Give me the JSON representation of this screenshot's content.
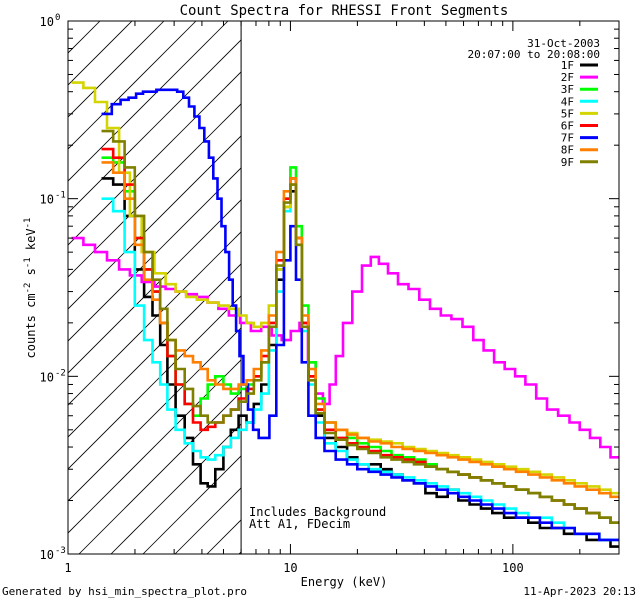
{
  "chart_data": {
    "type": "line",
    "title": "Count Spectra for RHESSI Front Segments",
    "xlabel": "Energy (keV)",
    "ylabel_parts": [
      "counts cm",
      "-2",
      " s",
      "-1",
      " keV",
      "-1"
    ],
    "xscale": "log",
    "yscale": "log",
    "xlim": [
      1,
      300
    ],
    "ylim": [
      0.001,
      1
    ],
    "x_ticks": [
      {
        "value": 1,
        "label": "1"
      },
      {
        "value": 10,
        "label": "10"
      },
      {
        "value": 100,
        "label": "100"
      }
    ],
    "y_ticks": [
      {
        "value": 1,
        "base": "10",
        "exp": "0"
      },
      {
        "value": 0.1,
        "base": "10",
        "exp": "-1"
      },
      {
        "value": 0.01,
        "base": "10",
        "exp": "-2"
      },
      {
        "value": 0.001,
        "base": "10",
        "exp": "-3"
      }
    ],
    "hatched_region": {
      "x_from": 1,
      "x_to": 6
    },
    "date": "31-Oct-2003",
    "time_range": "20:07:00 to 20:08:00",
    "annotation_lines": [
      "Includes Background",
      "Att A1, FDecim"
    ],
    "series": [
      {
        "name": "1F",
        "color": "#000000",
        "x": [
          1.5,
          1.7,
          1.9,
          2.1,
          2.3,
          2.5,
          2.7,
          2.9,
          3.2,
          3.5,
          3.8,
          4.1,
          4.4,
          4.8,
          5.2,
          5.6,
          6.1,
          6.6,
          7.1,
          7.7,
          8.3,
          9.0,
          9.7,
          10.3,
          10.9,
          11.6,
          12.5,
          13.5,
          15,
          17,
          19,
          21,
          24,
          27,
          30,
          34,
          38,
          43,
          48,
          54,
          60,
          68,
          76,
          86,
          97,
          110,
          125,
          140,
          160,
          180,
          200,
          230,
          260,
          290
        ],
        "y": [
          0.13,
          0.12,
          0.08,
          0.04,
          0.028,
          0.022,
          0.015,
          0.009,
          0.006,
          0.0045,
          0.0032,
          0.0025,
          0.0024,
          0.003,
          0.004,
          0.005,
          0.006,
          0.0055,
          0.007,
          0.009,
          0.015,
          0.035,
          0.09,
          0.11,
          0.06,
          0.02,
          0.01,
          0.006,
          0.0045,
          0.004,
          0.0035,
          0.0032,
          0.0032,
          0.003,
          0.0028,
          0.0026,
          0.0025,
          0.0022,
          0.0021,
          0.0023,
          0.002,
          0.0019,
          0.0018,
          0.0017,
          0.0016,
          0.0016,
          0.0015,
          0.0014,
          0.0014,
          0.0013,
          0.0013,
          0.0012,
          0.0012,
          0.0011
        ]
      },
      {
        "name": "2F",
        "color": "#ff00ff",
        "x": [
          1.1,
          1.25,
          1.4,
          1.6,
          1.8,
          2.0,
          2.3,
          2.6,
          2.9,
          3.2,
          3.6,
          4.0,
          4.5,
          5.0,
          5.6,
          6.3,
          7.0,
          7.8,
          8.7,
          9.6,
          10.5,
          11.5,
          12.5,
          13.5,
          14.5,
          15.5,
          16.5,
          18,
          20,
          22,
          24,
          26,
          29,
          32,
          36,
          40,
          45,
          50,
          56,
          63,
          70,
          78,
          87,
          97,
          108,
          120,
          135,
          150,
          170,
          190,
          210,
          235,
          260,
          290
        ],
        "y": [
          0.06,
          0.055,
          0.05,
          0.045,
          0.04,
          0.037,
          0.034,
          0.032,
          0.031,
          0.03,
          0.029,
          0.028,
          0.026,
          0.024,
          0.022,
          0.02,
          0.018,
          0.019,
          0.017,
          0.016,
          0.018,
          0.02,
          0.012,
          0.008,
          0.007,
          0.009,
          0.013,
          0.02,
          0.03,
          0.042,
          0.047,
          0.043,
          0.038,
          0.033,
          0.031,
          0.027,
          0.024,
          0.022,
          0.021,
          0.019,
          0.016,
          0.014,
          0.012,
          0.011,
          0.01,
          0.009,
          0.0075,
          0.0065,
          0.006,
          0.0055,
          0.005,
          0.0045,
          0.004,
          0.0035
        ]
      },
      {
        "name": "3F",
        "color": "#00ff00",
        "x": [
          1.5,
          1.7,
          1.9,
          2.1,
          2.3,
          2.5,
          2.7,
          2.9,
          3.2,
          3.5,
          3.8,
          4.1,
          4.4,
          4.8,
          5.2,
          5.6,
          6.1,
          6.6,
          7.1,
          7.7,
          8.3,
          9.0,
          9.7,
          10.3,
          10.9,
          11.6,
          12.5,
          13.5,
          15,
          17,
          19,
          21,
          24,
          27,
          30,
          34,
          38,
          43,
          48,
          54,
          60,
          68,
          76,
          86,
          97,
          110,
          125,
          140,
          160,
          180,
          200,
          230,
          260,
          290
        ],
        "y": [
          0.17,
          0.16,
          0.11,
          0.06,
          0.04,
          0.03,
          0.02,
          0.013,
          0.009,
          0.007,
          0.006,
          0.0075,
          0.009,
          0.01,
          0.009,
          0.008,
          0.0085,
          0.009,
          0.01,
          0.012,
          0.02,
          0.04,
          0.1,
          0.15,
          0.07,
          0.025,
          0.012,
          0.0075,
          0.0055,
          0.005,
          0.0045,
          0.0042,
          0.004,
          0.0038,
          0.0036,
          0.0035,
          0.0034,
          0.0032,
          0.003,
          0.0029,
          0.0028,
          0.0027,
          0.0026,
          0.0025,
          0.0024,
          0.0023,
          0.0022,
          0.0021,
          0.002,
          0.0019,
          0.0018,
          0.0017,
          0.0016,
          0.0015
        ]
      },
      {
        "name": "4F",
        "color": "#00ffff",
        "x": [
          1.5,
          1.7,
          1.9,
          2.1,
          2.3,
          2.5,
          2.7,
          2.9,
          3.2,
          3.5,
          3.8,
          4.1,
          4.4,
          4.8,
          5.2,
          5.6,
          6.1,
          6.6,
          7.1,
          7.7,
          8.3,
          9.0,
          9.7,
          10.3,
          10.9,
          11.6,
          12.5,
          13.5,
          15,
          17,
          19,
          21,
          24,
          27,
          30,
          34,
          38,
          43,
          48,
          54,
          60,
          68,
          76,
          86,
          97,
          110,
          125,
          140,
          160,
          180,
          200,
          230,
          260,
          290
        ],
        "y": [
          0.1,
          0.085,
          0.05,
          0.025,
          0.016,
          0.012,
          0.009,
          0.0065,
          0.005,
          0.0042,
          0.0038,
          0.0035,
          0.0034,
          0.0036,
          0.004,
          0.0045,
          0.005,
          0.0055,
          0.0065,
          0.008,
          0.014,
          0.03,
          0.085,
          0.13,
          0.055,
          0.018,
          0.009,
          0.0055,
          0.0042,
          0.0038,
          0.0034,
          0.0032,
          0.003,
          0.0029,
          0.0028,
          0.0027,
          0.0026,
          0.0025,
          0.0024,
          0.0023,
          0.0022,
          0.0021,
          0.002,
          0.0019,
          0.0018,
          0.0017,
          0.0016,
          0.0016,
          0.0015,
          0.0014,
          0.0013,
          0.0013,
          0.0012,
          0.0012
        ]
      },
      {
        "name": "5F",
        "color": "#d4d400",
        "x": [
          1.1,
          1.25,
          1.4,
          1.6,
          1.8,
          2.0,
          2.3,
          2.6,
          2.9,
          3.2,
          3.6,
          4.0,
          4.5,
          5.0,
          5.6,
          6.1,
          6.6,
          7.1,
          7.7,
          8.3,
          9.0,
          9.7,
          10.3,
          10.9,
          11.6,
          12.5,
          13.5,
          15,
          17,
          19,
          21,
          24,
          27,
          30,
          34,
          38,
          43,
          48,
          54,
          60,
          68,
          76,
          86,
          97,
          110,
          125,
          140,
          160,
          180,
          200,
          230,
          260,
          290
        ],
        "y": [
          0.45,
          0.42,
          0.35,
          0.25,
          0.14,
          0.08,
          0.05,
          0.038,
          0.033,
          0.03,
          0.028,
          0.027,
          0.026,
          0.025,
          0.024,
          0.022,
          0.02,
          0.019,
          0.02,
          0.025,
          0.04,
          0.09,
          0.12,
          0.06,
          0.02,
          0.01,
          0.0065,
          0.0055,
          0.005,
          0.0048,
          0.0045,
          0.0044,
          0.0043,
          0.0042,
          0.004,
          0.0039,
          0.0038,
          0.0037,
          0.0036,
          0.0035,
          0.0034,
          0.0033,
          0.0032,
          0.0031,
          0.003,
          0.0029,
          0.0028,
          0.0027,
          0.0026,
          0.0025,
          0.0024,
          0.0023,
          0.0022
        ]
      },
      {
        "name": "6F",
        "color": "#ff0000",
        "x": [
          1.5,
          1.7,
          1.9,
          2.1,
          2.3,
          2.5,
          2.7,
          2.9,
          3.2,
          3.5,
          3.8,
          4.1,
          4.4,
          4.8,
          5.2,
          5.6,
          6.1,
          6.6,
          7.1,
          7.7,
          8.3,
          9.0,
          9.7,
          10.3,
          10.9,
          11.6,
          12.5,
          13.5,
          15,
          17,
          19,
          21,
          24,
          27,
          30,
          34,
          38,
          43,
          48,
          54,
          60,
          68,
          76,
          86,
          97,
          110,
          125,
          140,
          160,
          180,
          200,
          230,
          260,
          290
        ],
        "y": [
          0.19,
          0.17,
          0.12,
          0.06,
          0.04,
          0.03,
          0.02,
          0.013,
          0.009,
          0.007,
          0.0055,
          0.005,
          0.0052,
          0.0055,
          0.006,
          0.0065,
          0.0075,
          0.0085,
          0.01,
          0.013,
          0.02,
          0.045,
          0.1,
          0.13,
          0.06,
          0.02,
          0.01,
          0.0065,
          0.005,
          0.0045,
          0.0042,
          0.004,
          0.0038,
          0.0036,
          0.0035,
          0.0034,
          0.0033,
          0.0031,
          0.003,
          0.0029,
          0.0028,
          0.0027,
          0.0026,
          0.0025,
          0.0024,
          0.0023,
          0.0022,
          0.0021,
          0.002,
          0.0019,
          0.0018,
          0.0017,
          0.0016,
          0.0015
        ]
      },
      {
        "name": "7F",
        "color": "#0000ff",
        "x": [
          1.5,
          1.65,
          1.8,
          1.95,
          2.1,
          2.25,
          2.4,
          2.6,
          2.8,
          3.0,
          3.2,
          3.4,
          3.6,
          3.8,
          4.0,
          4.2,
          4.4,
          4.6,
          4.8,
          5.0,
          5.2,
          5.4,
          5.6,
          5.8,
          6.0,
          6.3,
          6.6,
          7.0,
          7.4,
          7.8,
          8.3,
          9.0,
          9.7,
          10.3,
          10.9,
          11.6,
          12.5,
          13.5,
          15,
          17,
          19,
          21,
          24,
          27,
          30,
          34,
          38,
          43,
          48,
          54,
          60,
          68,
          76,
          86,
          97,
          110,
          125,
          140,
          160,
          180,
          200,
          230,
          260,
          290
        ],
        "y": [
          0.3,
          0.34,
          0.36,
          0.37,
          0.39,
          0.4,
          0.4,
          0.41,
          0.41,
          0.41,
          0.4,
          0.37,
          0.33,
          0.29,
          0.25,
          0.21,
          0.17,
          0.13,
          0.1,
          0.07,
          0.05,
          0.035,
          0.025,
          0.018,
          0.013,
          0.009,
          0.0065,
          0.005,
          0.0045,
          0.0045,
          0.006,
          0.015,
          0.045,
          0.07,
          0.035,
          0.012,
          0.006,
          0.0045,
          0.0038,
          0.0034,
          0.0032,
          0.003,
          0.0029,
          0.0028,
          0.0027,
          0.0026,
          0.0025,
          0.0024,
          0.0023,
          0.0022,
          0.0021,
          0.002,
          0.0019,
          0.0018,
          0.0017,
          0.0016,
          0.0016,
          0.0015,
          0.0014,
          0.0014,
          0.0013,
          0.0013,
          0.0012,
          0.0012
        ]
      },
      {
        "name": "8F",
        "color": "#ff8000",
        "x": [
          1.5,
          1.7,
          1.9,
          2.1,
          2.3,
          2.5,
          2.7,
          2.9,
          3.2,
          3.5,
          3.8,
          4.1,
          4.4,
          4.8,
          5.2,
          5.6,
          6.1,
          6.6,
          7.1,
          7.7,
          8.3,
          9.0,
          9.7,
          10.3,
          10.9,
          11.6,
          12.5,
          13.5,
          15,
          17,
          19,
          21,
          24,
          27,
          30,
          34,
          38,
          43,
          48,
          54,
          60,
          68,
          76,
          86,
          97,
          110,
          125,
          140,
          160,
          180,
          200,
          230,
          260,
          290
        ],
        "y": [
          0.16,
          0.14,
          0.1,
          0.055,
          0.035,
          0.027,
          0.02,
          0.016,
          0.014,
          0.013,
          0.012,
          0.011,
          0.0095,
          0.009,
          0.0085,
          0.0085,
          0.009,
          0.0095,
          0.011,
          0.014,
          0.022,
          0.05,
          0.11,
          0.13,
          0.06,
          0.022,
          0.011,
          0.007,
          0.0055,
          0.005,
          0.0047,
          0.0045,
          0.0043,
          0.0042,
          0.004,
          0.0039,
          0.0038,
          0.0037,
          0.0036,
          0.0035,
          0.0034,
          0.0033,
          0.0032,
          0.0031,
          0.003,
          0.0029,
          0.0028,
          0.0027,
          0.0026,
          0.0025,
          0.0024,
          0.0023,
          0.0022,
          0.0021
        ]
      },
      {
        "name": "9F",
        "color": "#808000",
        "x": [
          1.5,
          1.7,
          1.9,
          2.1,
          2.3,
          2.5,
          2.7,
          2.9,
          3.2,
          3.5,
          3.8,
          4.1,
          4.4,
          4.8,
          5.2,
          5.6,
          6.1,
          6.6,
          7.1,
          7.7,
          8.3,
          9.0,
          9.7,
          10.3,
          10.9,
          11.6,
          12.5,
          13.5,
          15,
          17,
          19,
          21,
          24,
          27,
          30,
          34,
          38,
          43,
          48,
          54,
          60,
          68,
          76,
          86,
          97,
          110,
          125,
          140,
          160,
          180,
          200,
          230,
          260,
          290
        ],
        "y": [
          0.24,
          0.21,
          0.15,
          0.08,
          0.05,
          0.035,
          0.024,
          0.016,
          0.011,
          0.0085,
          0.0068,
          0.006,
          0.0055,
          0.0055,
          0.006,
          0.0065,
          0.0072,
          0.008,
          0.0095,
          0.012,
          0.019,
          0.042,
          0.095,
          0.12,
          0.055,
          0.019,
          0.0095,
          0.0062,
          0.0048,
          0.0044,
          0.0041,
          0.0039,
          0.0037,
          0.0035,
          0.0034,
          0.0033,
          0.0032,
          0.0031,
          0.003,
          0.0029,
          0.0028,
          0.0027,
          0.0026,
          0.0025,
          0.0024,
          0.0023,
          0.0022,
          0.0021,
          0.002,
          0.0019,
          0.0018,
          0.0017,
          0.0016,
          0.0015
        ]
      }
    ]
  },
  "footer": {
    "left": "Generated by hsi_min_spectra_plot.pro",
    "right": "11-Apr-2023 20:13"
  }
}
